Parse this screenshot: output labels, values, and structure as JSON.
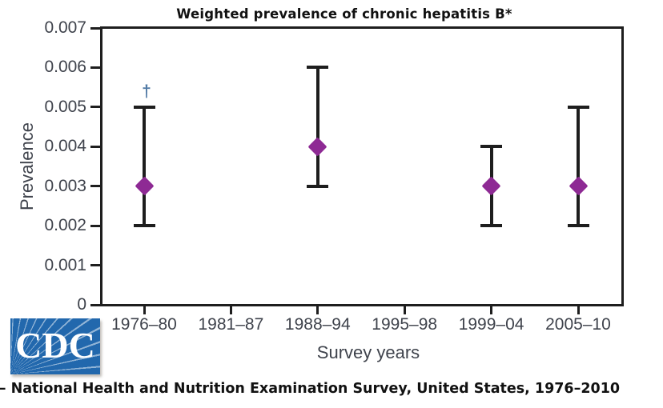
{
  "figure": {
    "title": "Weighted prevalence of chronic hepatitis B*",
    "y_axis_label": "Prevalence",
    "x_axis_label": "Survey years",
    "logo_text": "CDC",
    "caption_dash": "—",
    "caption": " National Health and Nutrition Examination Survey, United States, 1976–2010"
  },
  "chart_data": {
    "type": "scatter",
    "subtype": "point-estimate-with-error-bars",
    "title": "Weighted prevalence of chronic hepatitis B*",
    "xlabel": "Survey years",
    "ylabel": "Prevalence",
    "categories": [
      "1976–80",
      "1981–87",
      "1988–94",
      "1995–98",
      "1999–04",
      "2005–10"
    ],
    "ylim": [
      0,
      0.007
    ],
    "ytick_step": 0.001,
    "yticks": [
      {
        "label": "0.007",
        "value": 0.007
      },
      {
        "label": "0.006",
        "value": 0.006
      },
      {
        "label": "0.005",
        "value": 0.005
      },
      {
        "label": "0.004",
        "value": 0.004
      },
      {
        "label": "0.003",
        "value": 0.003
      },
      {
        "label": "0.002",
        "value": 0.002
      },
      {
        "label": "0.001",
        "value": 0.001
      },
      {
        "label": "0",
        "value": 0
      }
    ],
    "grid": false,
    "legend": false,
    "marker": "diamond",
    "series": [
      {
        "name": "Weighted prevalence of chronic hepatitis B",
        "points": [
          {
            "category": "1976–80",
            "y": 0.003,
            "ci_low": 0.002,
            "ci_high": 0.005,
            "annotation": "†"
          },
          {
            "category": "1988–94",
            "y": 0.004,
            "ci_low": 0.003,
            "ci_high": 0.006,
            "annotation": ""
          },
          {
            "category": "1999–04",
            "y": 0.003,
            "ci_low": 0.002,
            "ci_high": 0.004,
            "annotation": ""
          },
          {
            "category": "2005–10",
            "y": 0.003,
            "ci_low": 0.002,
            "ci_high": 0.005,
            "annotation": ""
          }
        ]
      }
    ]
  },
  "colors": {
    "accent_purple": "#8e2a94",
    "axis": "#1e1e1e",
    "tick_label": "#3f434c",
    "text": "#111111",
    "cdc_blue": "#2268ad",
    "dagger": "#527ba6"
  }
}
